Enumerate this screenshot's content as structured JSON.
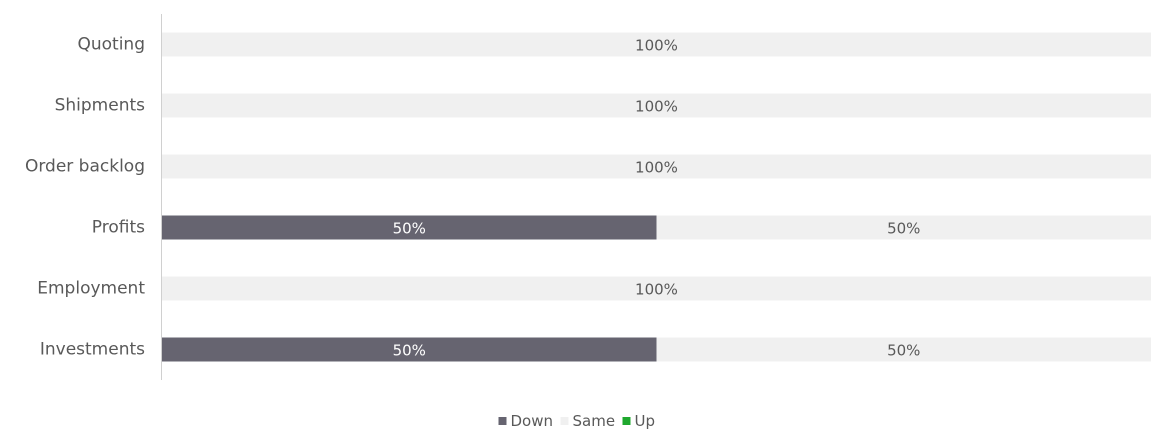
{
  "chart_data": {
    "type": "bar",
    "orientation": "horizontal",
    "stacked": "100%",
    "categories": [
      "Quoting",
      "Shipments",
      "Order backlog",
      "Profits",
      "Employment",
      "Investments"
    ],
    "series": [
      {
        "name": "Down",
        "values": [
          0,
          0,
          0,
          50,
          0,
          50
        ],
        "color": "#666470"
      },
      {
        "name": "Same",
        "values": [
          100,
          100,
          100,
          50,
          100,
          50
        ],
        "color": "#f0f0f0"
      },
      {
        "name": "Up",
        "values": [
          0,
          0,
          0,
          0,
          0,
          0
        ],
        "color": "#1fa82e"
      }
    ],
    "value_suffix": "%",
    "xlim": [
      0,
      100
    ],
    "grid": false,
    "legend_position": "bottom",
    "data_label_colors": {
      "Down": "#ffffff",
      "Same": "#595959",
      "Up": "#ffffff"
    }
  }
}
